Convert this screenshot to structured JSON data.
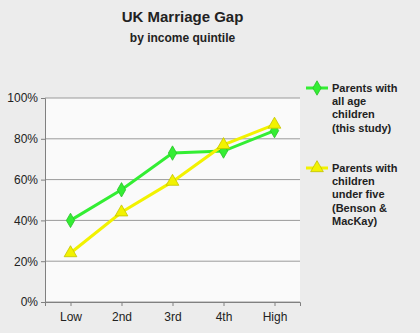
{
  "chart_data": {
    "type": "line",
    "title": "UK Marriage Gap",
    "subtitle": "by income quintile",
    "categories": [
      "Low",
      "2nd",
      "3rd",
      "4th",
      "High"
    ],
    "series": [
      {
        "name": "Parents with all age children (this study)",
        "color": "#33ee33",
        "marker": "diamond",
        "values": [
          40,
          55,
          73,
          74,
          84
        ]
      },
      {
        "name": "Parents with children under five (Benson & MacKay)",
        "color": "#f2f200",
        "marker": "triangle",
        "values": [
          24,
          44,
          59,
          77,
          87
        ]
      }
    ],
    "ylim": [
      0,
      100
    ],
    "yticks": [
      {
        "value": 0,
        "label": "0%"
      },
      {
        "value": 20,
        "label": "20%"
      },
      {
        "value": 40,
        "label": "40%"
      },
      {
        "value": 60,
        "label": "60%"
      },
      {
        "value": 80,
        "label": "80%"
      },
      {
        "value": 100,
        "label": "100%"
      }
    ],
    "grid": true,
    "legend": "right"
  }
}
